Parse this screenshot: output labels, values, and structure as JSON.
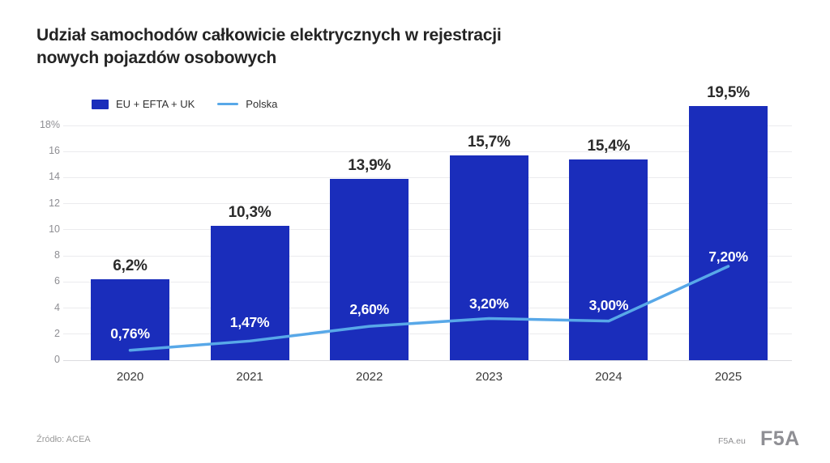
{
  "title": {
    "line1": "Udział samochodów całkowicie elektrycznych w rejestracji",
    "line2": "nowych pojazdów osobowych"
  },
  "legend": {
    "items": [
      {
        "label": "EU + EFTA + UK",
        "swatch": "square",
        "color": "#1A2DBB"
      },
      {
        "label": "Polska",
        "swatch": "line",
        "color": "#58A8E8"
      }
    ]
  },
  "chart_data": {
    "type": "bar+line",
    "title": "Udział samochodów całkowicie elektrycznych w rejestracji nowych pojazdów osobowych",
    "categories": [
      "2020",
      "2021",
      "2022",
      "2023",
      "2024",
      "2025"
    ],
    "series": [
      {
        "name": "EU + EFTA + UK",
        "type": "bar",
        "color": "#1A2DBB",
        "values": [
          6.2,
          10.3,
          13.9,
          15.7,
          15.4,
          19.5
        ],
        "labels": [
          "6,2%",
          "10,3%",
          "13,9%",
          "15,7%",
          "15,4%",
          "19,5%"
        ]
      },
      {
        "name": "Polska",
        "type": "line",
        "color": "#58A8E8",
        "values": [
          0.76,
          1.47,
          2.6,
          3.2,
          3.0,
          7.2
        ],
        "labels": [
          "0,76%",
          "1,47%",
          "2,60%",
          "3,20%",
          "3,00%",
          "7,20%"
        ]
      }
    ],
    "ylim": [
      0,
      18
    ],
    "ytick_step": 2,
    "ytick_labels": [
      "0",
      "2",
      "4",
      "6",
      "8",
      "10",
      "12",
      "14",
      "16",
      "18%"
    ],
    "grid": true,
    "legend_position": "top-left"
  },
  "footer": {
    "source": "Źródło: ACEA",
    "site": "F5A.eu",
    "logo": "F5A"
  },
  "colors": {
    "bar": "#1A2DBB",
    "line": "#58A8E8",
    "grid": "#ebebee",
    "baseline": "#dcdce0",
    "title_text": "#242424",
    "bar_label": "#2b2b2b",
    "axis_label": "#8e8e93",
    "x_label": "#3a3a3a",
    "background": "#ffffff"
  }
}
